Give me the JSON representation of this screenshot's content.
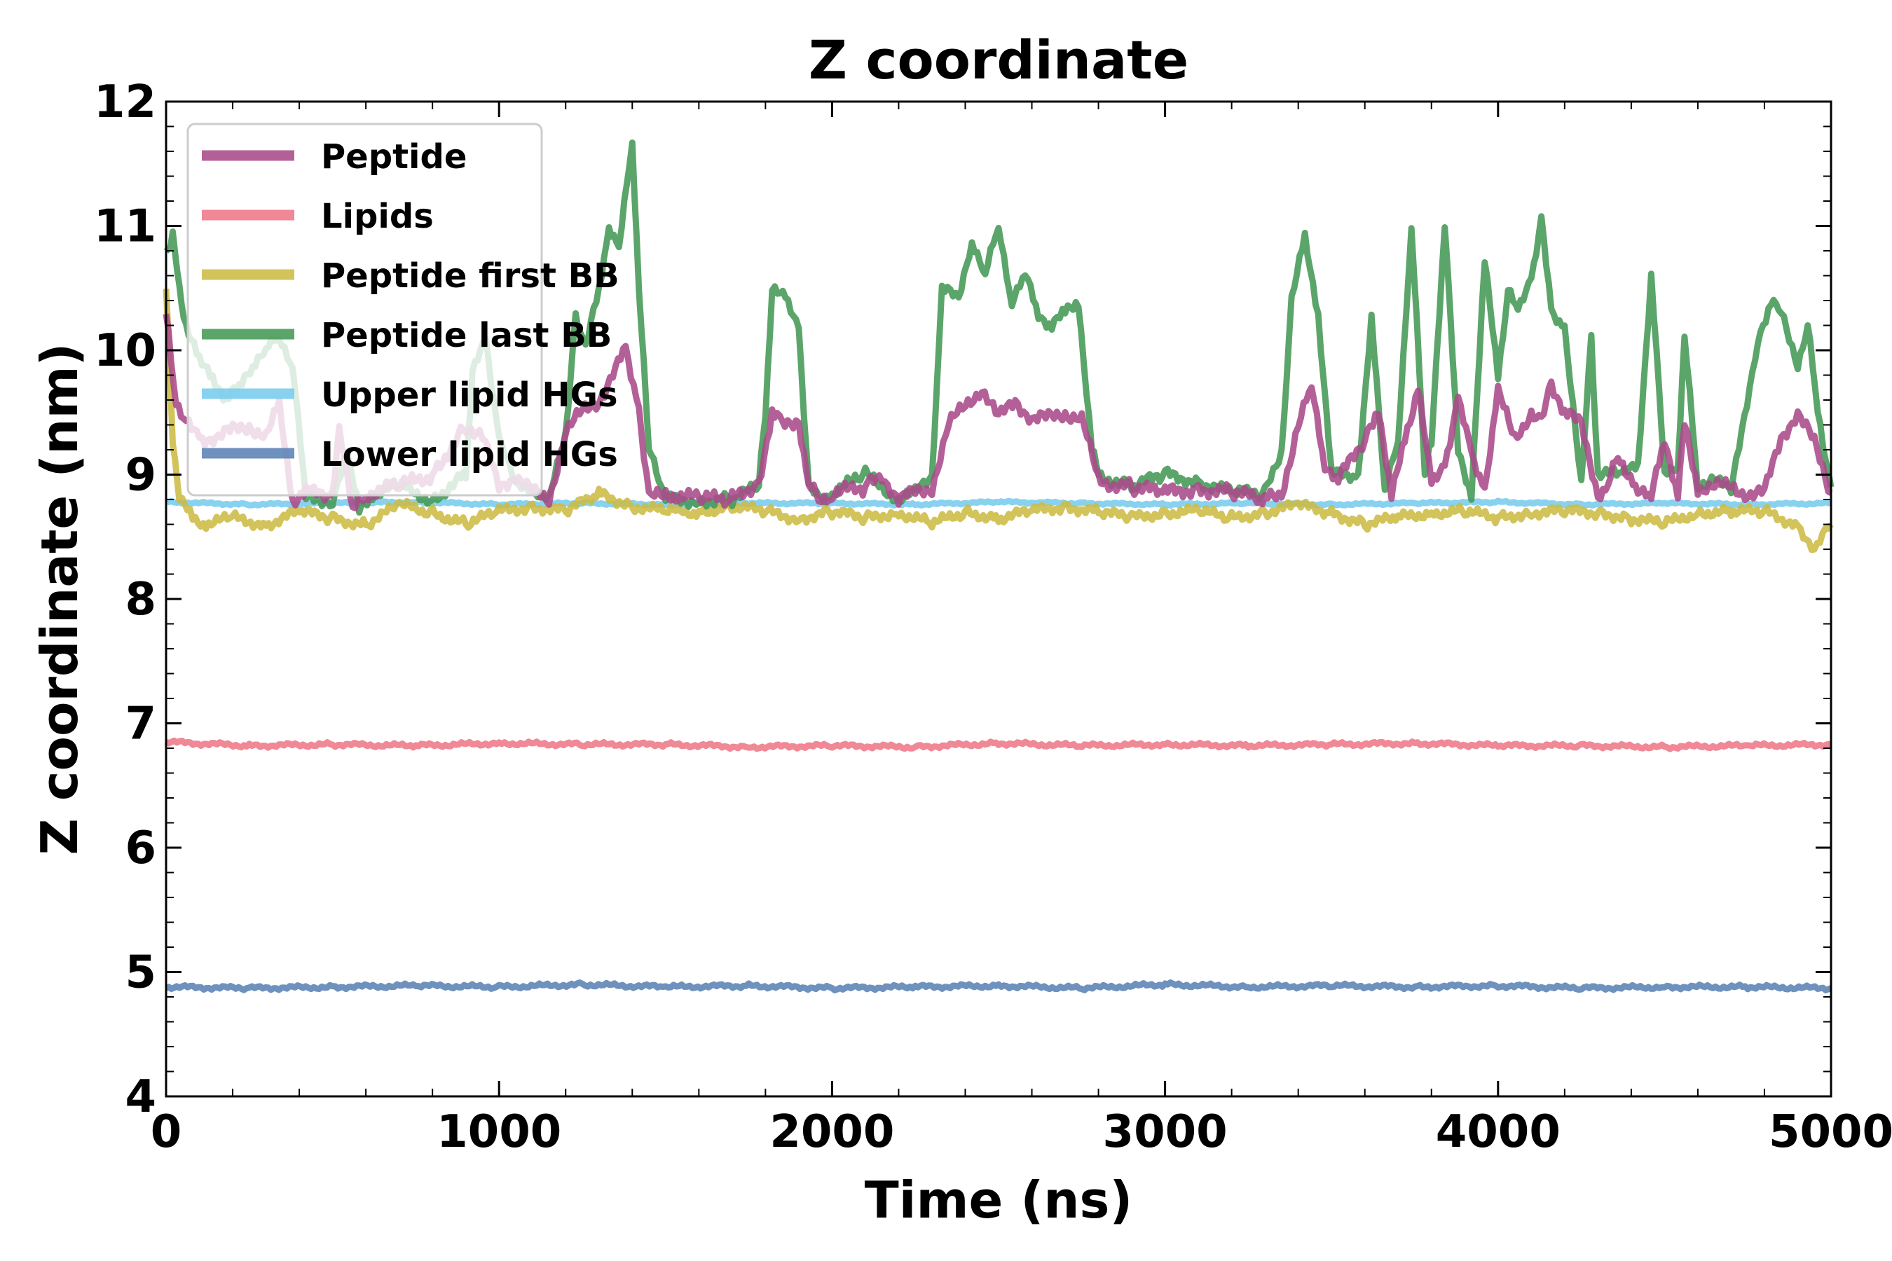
{
  "chart_data": {
    "type": "line",
    "title": "Z coordinate",
    "xlabel": "Time (ns)",
    "ylabel": "Z coordinate (nm)",
    "xlim": [
      0,
      5000
    ],
    "ylim": [
      4,
      12
    ],
    "x_ticks": [
      0,
      1000,
      2000,
      3000,
      4000,
      5000
    ],
    "y_ticks": [
      4,
      5,
      6,
      7,
      8,
      9,
      10,
      11,
      12
    ],
    "legend_position": "top-left",
    "series": [
      {
        "name": "Peptide",
        "color": "#aa4a8a",
        "x": [
          0,
          30,
          60,
          100,
          150,
          200,
          250,
          300,
          340,
          380,
          420,
          500,
          520,
          560,
          600,
          700,
          800,
          900,
          950,
          1000,
          1050,
          1100,
          1150,
          1200,
          1250,
          1300,
          1350,
          1380,
          1420,
          1450,
          1500,
          1600,
          1700,
          1780,
          1820,
          1850,
          1900,
          1930,
          1960,
          2000,
          2100,
          2150,
          2200,
          2250,
          2300,
          2350,
          2400,
          2450,
          2500,
          2550,
          2600,
          2650,
          2700,
          2750,
          2800,
          2900,
          3000,
          3100,
          3200,
          3300,
          3350,
          3400,
          3440,
          3480,
          3520,
          3600,
          3640,
          3680,
          3720,
          3760,
          3800,
          3840,
          3880,
          3920,
          3960,
          4000,
          4050,
          4100,
          4130,
          4160,
          4200,
          4250,
          4300,
          4330,
          4360,
          4420,
          4460,
          4500,
          4540,
          4560,
          4600,
          4650,
          4700,
          4750,
          4800,
          4850,
          4900,
          4950,
          5000
        ],
        "values": [
          10.3,
          9.6,
          9.4,
          9.3,
          9.3,
          9.35,
          9.4,
          9.3,
          9.55,
          8.8,
          8.85,
          8.85,
          9.4,
          8.7,
          8.85,
          8.9,
          9.0,
          9.4,
          9.3,
          8.9,
          9.0,
          8.85,
          8.8,
          9.35,
          9.5,
          9.6,
          9.85,
          10.0,
          9.55,
          8.8,
          8.85,
          8.8,
          8.8,
          8.95,
          9.5,
          9.4,
          9.45,
          8.9,
          8.8,
          8.85,
          8.9,
          9.0,
          8.8,
          8.85,
          8.9,
          9.4,
          9.55,
          9.7,
          9.45,
          9.6,
          9.45,
          9.45,
          9.5,
          9.45,
          8.95,
          8.9,
          8.85,
          8.9,
          8.85,
          8.8,
          8.85,
          9.4,
          9.7,
          9.1,
          8.95,
          9.3,
          9.55,
          8.8,
          9.3,
          9.7,
          8.9,
          9.1,
          9.6,
          9.15,
          8.9,
          9.65,
          9.3,
          9.5,
          9.4,
          9.75,
          9.5,
          9.4,
          8.85,
          8.9,
          9.15,
          8.9,
          8.8,
          9.3,
          8.85,
          9.4,
          8.9,
          8.9,
          8.9,
          8.85,
          8.85,
          9.3,
          9.5,
          9.25,
          8.85
        ]
      },
      {
        "name": "Lipids",
        "color": "#ee7788",
        "x": [
          0,
          250,
          500,
          750,
          1000,
          1250,
          1500,
          1750,
          2000,
          2250,
          2500,
          2750,
          3000,
          3250,
          3500,
          3750,
          4000,
          4250,
          4500,
          4750,
          5000
        ],
        "values": [
          6.85,
          6.82,
          6.83,
          6.82,
          6.84,
          6.83,
          6.83,
          6.81,
          6.82,
          6.81,
          6.84,
          6.82,
          6.83,
          6.82,
          6.83,
          6.84,
          6.82,
          6.82,
          6.81,
          6.82,
          6.83
        ]
      },
      {
        "name": "Peptide first BB",
        "color": "#ccbb44",
        "x": [
          0,
          20,
          40,
          80,
          120,
          200,
          300,
          400,
          500,
          600,
          700,
          800,
          900,
          1000,
          1100,
          1200,
          1300,
          1400,
          1500,
          1600,
          1700,
          1800,
          1900,
          2000,
          2100,
          2200,
          2300,
          2400,
          2500,
          2600,
          2700,
          2800,
          2900,
          3000,
          3100,
          3200,
          3300,
          3400,
          3500,
          3600,
          3700,
          3800,
          3900,
          4000,
          4100,
          4200,
          4300,
          4400,
          4500,
          4600,
          4700,
          4800,
          4900,
          4950,
          5000
        ],
        "values": [
          10.5,
          9.3,
          8.8,
          8.65,
          8.6,
          8.65,
          8.6,
          8.7,
          8.65,
          8.6,
          8.75,
          8.7,
          8.6,
          8.7,
          8.75,
          8.7,
          8.85,
          8.75,
          8.7,
          8.7,
          8.75,
          8.7,
          8.65,
          8.7,
          8.65,
          8.7,
          8.6,
          8.7,
          8.65,
          8.7,
          8.75,
          8.7,
          8.65,
          8.7,
          8.7,
          8.65,
          8.7,
          8.75,
          8.7,
          8.6,
          8.65,
          8.7,
          8.7,
          8.65,
          8.7,
          8.7,
          8.7,
          8.65,
          8.6,
          8.7,
          8.7,
          8.7,
          8.6,
          8.4,
          8.6
        ]
      },
      {
        "name": "Peptide last BB",
        "color": "#449955",
        "x": [
          0,
          20,
          40,
          60,
          100,
          140,
          180,
          220,
          260,
          300,
          340,
          380,
          420,
          500,
          540,
          580,
          620,
          700,
          800,
          900,
          920,
          960,
          1000,
          1050,
          1100,
          1150,
          1200,
          1230,
          1260,
          1300,
          1330,
          1360,
          1400,
          1420,
          1450,
          1480,
          1500,
          1600,
          1700,
          1780,
          1800,
          1820,
          1860,
          1900,
          1930,
          1960,
          2000,
          2100,
          2150,
          2200,
          2250,
          2300,
          2330,
          2380,
          2420,
          2460,
          2500,
          2540,
          2580,
          2620,
          2660,
          2700,
          2740,
          2780,
          2800,
          2900,
          3000,
          3100,
          3200,
          3300,
          3350,
          3380,
          3420,
          3460,
          3500,
          3580,
          3620,
          3660,
          3700,
          3740,
          3780,
          3800,
          3840,
          3880,
          3920,
          3960,
          4000,
          4030,
          4060,
          4100,
          4130,
          4160,
          4200,
          4250,
          4280,
          4300,
          4380,
          4420,
          4460,
          4500,
          4540,
          4560,
          4600,
          4650,
          4700,
          4780,
          4820,
          4850,
          4900,
          4930,
          4960,
          5000
        ],
        "values": [
          10.8,
          10.9,
          10.5,
          10.2,
          9.9,
          9.8,
          9.6,
          9.7,
          9.9,
          10.0,
          10.1,
          9.9,
          8.8,
          8.8,
          9.2,
          8.7,
          8.85,
          8.9,
          8.8,
          9.0,
          9.8,
          10.1,
          9.3,
          8.9,
          8.9,
          8.8,
          9.3,
          10.3,
          10.0,
          10.5,
          11.0,
          10.8,
          11.7,
          10.5,
          9.2,
          9.0,
          8.8,
          8.8,
          8.8,
          8.9,
          9.5,
          10.5,
          10.4,
          10.2,
          8.9,
          8.8,
          8.85,
          9.0,
          8.9,
          8.8,
          8.85,
          9.0,
          10.5,
          10.4,
          10.9,
          10.6,
          11.0,
          10.4,
          10.6,
          10.3,
          10.2,
          10.3,
          10.4,
          9.2,
          9.0,
          8.9,
          9.0,
          8.95,
          8.85,
          8.85,
          9.2,
          10.4,
          10.9,
          10.3,
          9.0,
          9.0,
          10.3,
          8.85,
          9.3,
          11.0,
          9.0,
          9.3,
          11.0,
          9.2,
          8.85,
          10.7,
          9.8,
          10.5,
          10.3,
          10.6,
          11.05,
          10.3,
          10.2,
          8.9,
          10.1,
          9.0,
          9.0,
          9.1,
          10.6,
          9.0,
          9.1,
          10.1,
          8.9,
          9.0,
          8.85,
          10.1,
          10.4,
          10.3,
          9.9,
          10.2,
          9.5,
          8.9
        ]
      },
      {
        "name": "Upper lipid HGs",
        "color": "#77ccee",
        "x": [
          0,
          250,
          500,
          750,
          1000,
          1250,
          1500,
          1750,
          2000,
          2250,
          2500,
          2750,
          3000,
          3250,
          3500,
          3750,
          4000,
          4250,
          4500,
          4750,
          5000
        ],
        "values": [
          8.78,
          8.76,
          8.77,
          8.78,
          8.76,
          8.77,
          8.76,
          8.77,
          8.77,
          8.76,
          8.78,
          8.77,
          8.76,
          8.77,
          8.76,
          8.77,
          8.78,
          8.76,
          8.77,
          8.76,
          8.77
        ]
      },
      {
        "name": "Lower lipid HGs",
        "color": "#5a82b4",
        "x": [
          0,
          250,
          500,
          750,
          1000,
          1250,
          1500,
          1750,
          2000,
          2250,
          2500,
          2750,
          3000,
          3250,
          3500,
          3750,
          4000,
          4250,
          4500,
          4750,
          5000
        ],
        "values": [
          4.88,
          4.87,
          4.88,
          4.89,
          4.88,
          4.9,
          4.88,
          4.89,
          4.87,
          4.88,
          4.89,
          4.87,
          4.9,
          4.88,
          4.89,
          4.88,
          4.89,
          4.87,
          4.88,
          4.88,
          4.87
        ]
      }
    ]
  }
}
